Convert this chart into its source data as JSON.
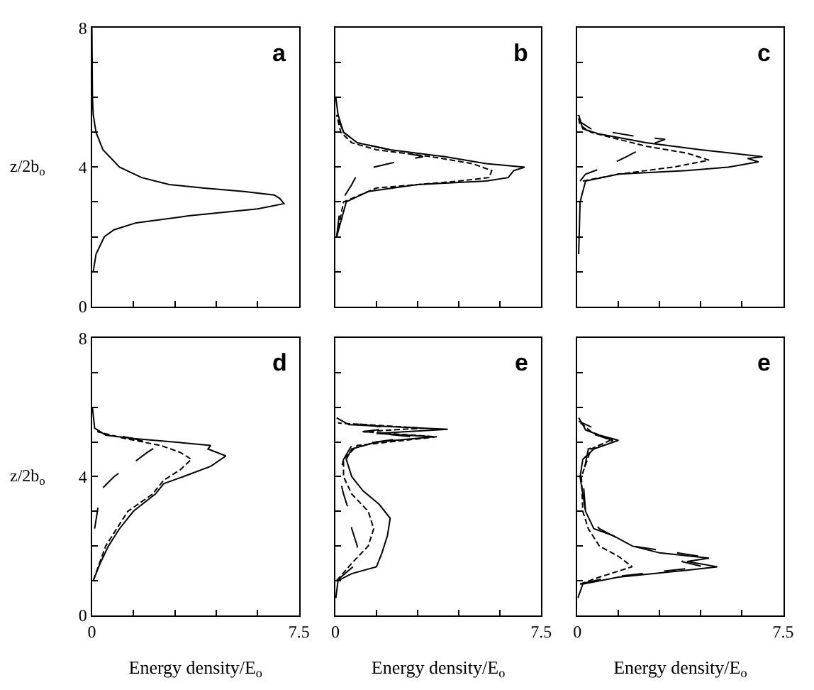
{
  "chart_data": [
    {
      "type": "line",
      "title": "a",
      "ylabel": "z/2b$_{o}$",
      "tick_labels": "y",
      "xlim": [
        0,
        7.5
      ],
      "ylim": [
        0,
        8
      ],
      "xticks": [
        0,
        {
          "value": 1.5,
          "label": null
        },
        {
          "value": 3,
          "label": null
        },
        {
          "value": 4.5,
          "label": null
        },
        {
          "value": 6,
          "label": null
        },
        {
          "value": 7.5,
          "label": null
        }
      ],
      "yticks": [
        0,
        {
          "value": 1,
          "label": null
        },
        {
          "value": 2,
          "label": null
        },
        {
          "value": 3,
          "label": null
        },
        4,
        {
          "value": 5,
          "label": null
        },
        {
          "value": 6,
          "label": null
        },
        {
          "value": 7,
          "label": null
        },
        8
      ],
      "series": [
        {
          "color": "#000000",
          "line_style": "solid",
          "x": [
            0.05,
            0.15,
            0.45,
            0.8,
            1.6,
            3.5,
            6.0,
            6.95,
            6.8,
            6.6,
            5.5,
            4.0,
            2.8,
            1.8,
            1.0,
            0.4,
            0.15,
            0.05,
            0.02,
            0
          ],
          "values": [
            1.0,
            1.5,
            2.0,
            2.2,
            2.4,
            2.6,
            2.8,
            2.95,
            3.1,
            3.2,
            3.3,
            3.4,
            3.5,
            3.7,
            4.0,
            4.5,
            5.0,
            5.5,
            6.0,
            8.0
          ]
        }
      ]
    },
    {
      "type": "line",
      "title": "b",
      "tick_labels": false,
      "xlim": [
        0,
        7.5
      ],
      "ylim": [
        0,
        8
      ],
      "xticks": [
        0,
        {
          "value": 1.5,
          "label": null
        },
        {
          "value": 3,
          "label": null
        },
        {
          "value": 4.5,
          "label": null
        },
        {
          "value": 6,
          "label": null
        },
        {
          "value": 7.5,
          "label": null
        }
      ],
      "yticks": [
        {
          "value": 0,
          "label": null
        },
        {
          "value": 1,
          "label": null
        },
        {
          "value": 2,
          "label": null
        },
        {
          "value": 3,
          "label": null
        },
        {
          "value": 4,
          "label": null
        },
        {
          "value": 5,
          "label": null
        },
        {
          "value": 6,
          "label": null
        },
        {
          "value": 7,
          "label": null
        },
        {
          "value": 8,
          "label": null
        }
      ],
      "series": [
        {
          "color": "#000000",
          "line_style": "solid",
          "x": [
            0.05,
            0.4,
            1.2,
            3.0,
            5.5,
            6.3,
            6.5,
            6.9,
            5.5,
            4.0,
            2.0,
            0.8,
            0.3,
            0.1,
            0.02
          ],
          "values": [
            2.0,
            3.0,
            3.3,
            3.5,
            3.6,
            3.7,
            3.9,
            4.0,
            4.1,
            4.3,
            4.5,
            4.7,
            5.0,
            5.5,
            6.0
          ]
        },
        {
          "color": "#000000",
          "line_style": "dotted",
          "x": [
            0.05,
            0.3,
            1.5,
            4.5,
            5.6,
            5.7,
            5.0,
            3.5,
            1.5,
            0.6,
            0.2,
            0.05
          ],
          "values": [
            2.0,
            3.0,
            3.4,
            3.6,
            3.7,
            3.9,
            4.1,
            4.3,
            4.5,
            4.7,
            5.0,
            5.5
          ]
        },
        {
          "color": "#000000",
          "line_style": "dashed",
          "x": [
            0.05,
            0.2,
            0.6,
            0.8,
            1.4,
            2.5,
            3.2,
            2.0,
            0.8,
            0.3,
            0.05
          ],
          "values": [
            2.0,
            3.0,
            3.5,
            3.8,
            4.0,
            4.2,
            4.3,
            4.5,
            4.7,
            5.0,
            5.5
          ]
        }
      ]
    },
    {
      "type": "line",
      "title": "c",
      "tick_labels": false,
      "xlim": [
        0,
        7.5
      ],
      "ylim": [
        0,
        8
      ],
      "xticks": [
        0,
        {
          "value": 1.5,
          "label": null
        },
        {
          "value": 3,
          "label": null
        },
        {
          "value": 4.5,
          "label": null
        },
        {
          "value": 6,
          "label": null
        },
        {
          "value": 7.5,
          "label": null
        }
      ],
      "yticks": [
        {
          "value": 0,
          "label": null
        },
        {
          "value": 1,
          "label": null
        },
        {
          "value": 2,
          "label": null
        },
        {
          "value": 3,
          "label": null
        },
        {
          "value": 4,
          "label": null
        },
        {
          "value": 5,
          "label": null
        },
        {
          "value": 6,
          "label": null
        },
        {
          "value": 7,
          "label": null
        },
        {
          "value": 8,
          "label": null
        }
      ],
      "series": [
        {
          "color": "#000000",
          "line_style": "solid",
          "x": [
            0.05,
            0.1,
            0.3,
            1.5,
            4.0,
            5.5,
            6.6,
            6.2,
            6.75,
            4.5,
            2.5,
            1.5,
            0.8,
            0.2,
            0.05
          ],
          "values": [
            1.5,
            3.0,
            3.6,
            3.8,
            3.9,
            4.0,
            4.15,
            4.25,
            4.3,
            4.5,
            4.7,
            4.85,
            4.95,
            5.1,
            5.5
          ]
        },
        {
          "color": "#000000",
          "line_style": "dotted",
          "x": [
            0.2,
            1.5,
            3.5,
            4.8,
            4.0,
            2.5,
            1.5,
            0.5,
            0.1,
            0.02
          ],
          "values": [
            3.6,
            3.8,
            4.0,
            4.2,
            4.4,
            4.6,
            4.8,
            5.0,
            5.2,
            5.5
          ]
        },
        {
          "color": "#000000",
          "line_style": "dashed",
          "x": [
            0.1,
            0.3,
            1.0,
            1.8,
            2.5,
            3.2,
            2.0,
            0.5,
            0.1
          ],
          "values": [
            3.6,
            3.8,
            4.0,
            4.3,
            4.6,
            4.8,
            4.9,
            5.1,
            5.3
          ]
        }
      ]
    },
    {
      "type": "line",
      "title": "d",
      "ylabel": "z/2b$_{o}$",
      "xlabel": "Energy density/E$_{o}$",
      "xlim": [
        0,
        7.5
      ],
      "ylim": [
        0,
        8
      ],
      "xticks": [
        0,
        {
          "value": 1.5,
          "label": null
        },
        {
          "value": 3,
          "label": null
        },
        {
          "value": 4.5,
          "label": null
        },
        {
          "value": 6,
          "label": null
        },
        7.5
      ],
      "yticks": [
        0,
        {
          "value": 1,
          "label": null
        },
        {
          "value": 2,
          "label": null
        },
        {
          "value": 3,
          "label": null
        },
        4,
        {
          "value": 5,
          "label": null
        },
        {
          "value": 6,
          "label": null
        },
        {
          "value": 7,
          "label": null
        },
        8
      ],
      "series": [
        {
          "color": "#000000",
          "line_style": "solid",
          "x": [
            0.05,
            0.3,
            0.6,
            1.0,
            1.5,
            2.3,
            2.6,
            3.3,
            4.3,
            4.85,
            4.2,
            4.3,
            3.0,
            1.5,
            0.5,
            0.1,
            0.02
          ],
          "values": [
            1.0,
            1.5,
            2.0,
            2.5,
            3.0,
            3.5,
            3.8,
            4.0,
            4.3,
            4.6,
            4.8,
            4.9,
            5.0,
            5.1,
            5.2,
            5.4,
            6.0
          ]
        },
        {
          "color": "#000000",
          "line_style": "dotted",
          "x": [
            0.05,
            0.5,
            1.3,
            2.2,
            2.6,
            3.2,
            3.6,
            3.2,
            2.5,
            1.2,
            0.2
          ],
          "values": [
            1.0,
            2.0,
            3.0,
            3.5,
            3.9,
            4.2,
            4.5,
            4.7,
            4.9,
            5.1,
            5.3
          ]
        },
        {
          "color": "#000000",
          "line_style": "dashed",
          "x": [
            0.1,
            0.2,
            0.3,
            0.8,
            1.5,
            2.0,
            2.4,
            1.5,
            0.2
          ],
          "values": [
            2.5,
            3.0,
            3.6,
            4.0,
            4.4,
            4.7,
            4.9,
            5.1,
            5.3
          ]
        }
      ]
    },
    {
      "type": "line",
      "title": "e",
      "xlabel": "Energy density/E$_{o}$",
      "tick_labels": "x",
      "xlim": [
        0,
        7.5
      ],
      "ylim": [
        0,
        8
      ],
      "xticks": [
        0,
        {
          "value": 1.5,
          "label": null
        },
        {
          "value": 3,
          "label": null
        },
        {
          "value": 4.5,
          "label": null
        },
        {
          "value": 6,
          "label": null
        },
        7.5
      ],
      "yticks": [
        {
          "value": 0,
          "label": null
        },
        {
          "value": 1,
          "label": null
        },
        {
          "value": 2,
          "label": null
        },
        {
          "value": 3,
          "label": null
        },
        {
          "value": 4,
          "label": null
        },
        {
          "value": 5,
          "label": null
        },
        {
          "value": 6,
          "label": null
        },
        {
          "value": 7,
          "label": null
        },
        {
          "value": 8,
          "label": null
        }
      ],
      "series": [
        {
          "color": "#000000",
          "line_style": "solid",
          "x": [
            0.02,
            0.1,
            0.6,
            1.5,
            1.7,
            1.9,
            2.0,
            1.6,
            1.0,
            0.6,
            0.4,
            0.6,
            1.5,
            3.6,
            1.5,
            4.1,
            0.5,
            0.05
          ],
          "values": [
            0.5,
            1.0,
            1.2,
            1.4,
            1.8,
            2.3,
            2.8,
            3.2,
            3.6,
            4.0,
            4.5,
            4.8,
            5.0,
            5.15,
            5.25,
            5.37,
            5.5,
            5.7
          ]
        },
        {
          "color": "#000000",
          "line_style": "dotted",
          "x": [
            0.05,
            0.6,
            1.2,
            1.4,
            1.2,
            0.6,
            0.3,
            0.3,
            0.8,
            3.7,
            1.0,
            3.2,
            0.1
          ],
          "values": [
            1.0,
            1.5,
            2.0,
            2.5,
            3.0,
            3.5,
            4.0,
            4.5,
            4.9,
            5.15,
            5.3,
            5.4,
            5.55
          ]
        },
        {
          "color": "#000000",
          "line_style": "dashed",
          "x": [
            0.05,
            0.8,
            0.8,
            0.6,
            0.5,
            0.3,
            0.15,
            0.3,
            0.6,
            2.8,
            1.0,
            2.0,
            0.1
          ],
          "values": [
            1.0,
            1.5,
            2.0,
            2.5,
            3.0,
            3.5,
            4.0,
            4.5,
            4.9,
            5.15,
            5.3,
            5.4,
            5.6
          ]
        }
      ]
    },
    {
      "type": "line",
      "title": "e",
      "xlabel": "Energy density/E$_{o}$",
      "tick_labels": "x",
      "xlim": [
        0,
        7.5
      ],
      "ylim": [
        0,
        8
      ],
      "xticks": [
        0,
        {
          "value": 1.5,
          "label": null
        },
        {
          "value": 3,
          "label": null
        },
        {
          "value": 4.5,
          "label": null
        },
        {
          "value": 6,
          "label": null
        },
        7.5
      ],
      "yticks": [
        {
          "value": 0,
          "label": null
        },
        {
          "value": 1,
          "label": null
        },
        {
          "value": 2,
          "label": null
        },
        {
          "value": 3,
          "label": null
        },
        {
          "value": 4,
          "label": null
        },
        {
          "value": 5,
          "label": null
        },
        {
          "value": 6,
          "label": null
        },
        {
          "value": 7,
          "label": null
        },
        {
          "value": 8,
          "label": null
        }
      ],
      "series": [
        {
          "color": "#000000",
          "line_style": "solid",
          "x": [
            0.02,
            0.2,
            1.5,
            4.0,
            5.1,
            4.0,
            4.8,
            3.0,
            2.0,
            1.3,
            0.6,
            0.3,
            0.2,
            0.1,
            0.2,
            0.6,
            1.5,
            0.8,
            0.3,
            0.2,
            0.05
          ],
          "values": [
            0.5,
            0.9,
            1.1,
            1.3,
            1.4,
            1.55,
            1.65,
            1.8,
            2.0,
            2.3,
            2.5,
            3.0,
            3.5,
            4.0,
            4.5,
            4.8,
            5.05,
            5.2,
            5.35,
            5.5,
            5.7
          ]
        },
        {
          "color": "#000000",
          "line_style": "dotted",
          "x": [
            0.1,
            0.8,
            2.0,
            1.5,
            0.8,
            0.4,
            0.2,
            0.15,
            0.5,
            1.2,
            0.5,
            0.05
          ],
          "values": [
            0.9,
            1.1,
            1.4,
            1.7,
            2.0,
            2.5,
            3.0,
            4.0,
            4.8,
            5.05,
            5.3,
            5.6
          ]
        },
        {
          "color": "#000000",
          "line_style": "dashed",
          "x": [
            0.1,
            1.2,
            4.6,
            3.8,
            4.5,
            2.0,
            0.8,
            0.3,
            0.2,
            0.4,
            1.3,
            0.3,
            0.6,
            0.05
          ],
          "values": [
            0.9,
            1.1,
            1.4,
            1.55,
            1.7,
            2.0,
            2.5,
            3.0,
            4.0,
            4.8,
            5.05,
            5.3,
            5.4,
            5.6
          ]
        }
      ]
    }
  ]
}
